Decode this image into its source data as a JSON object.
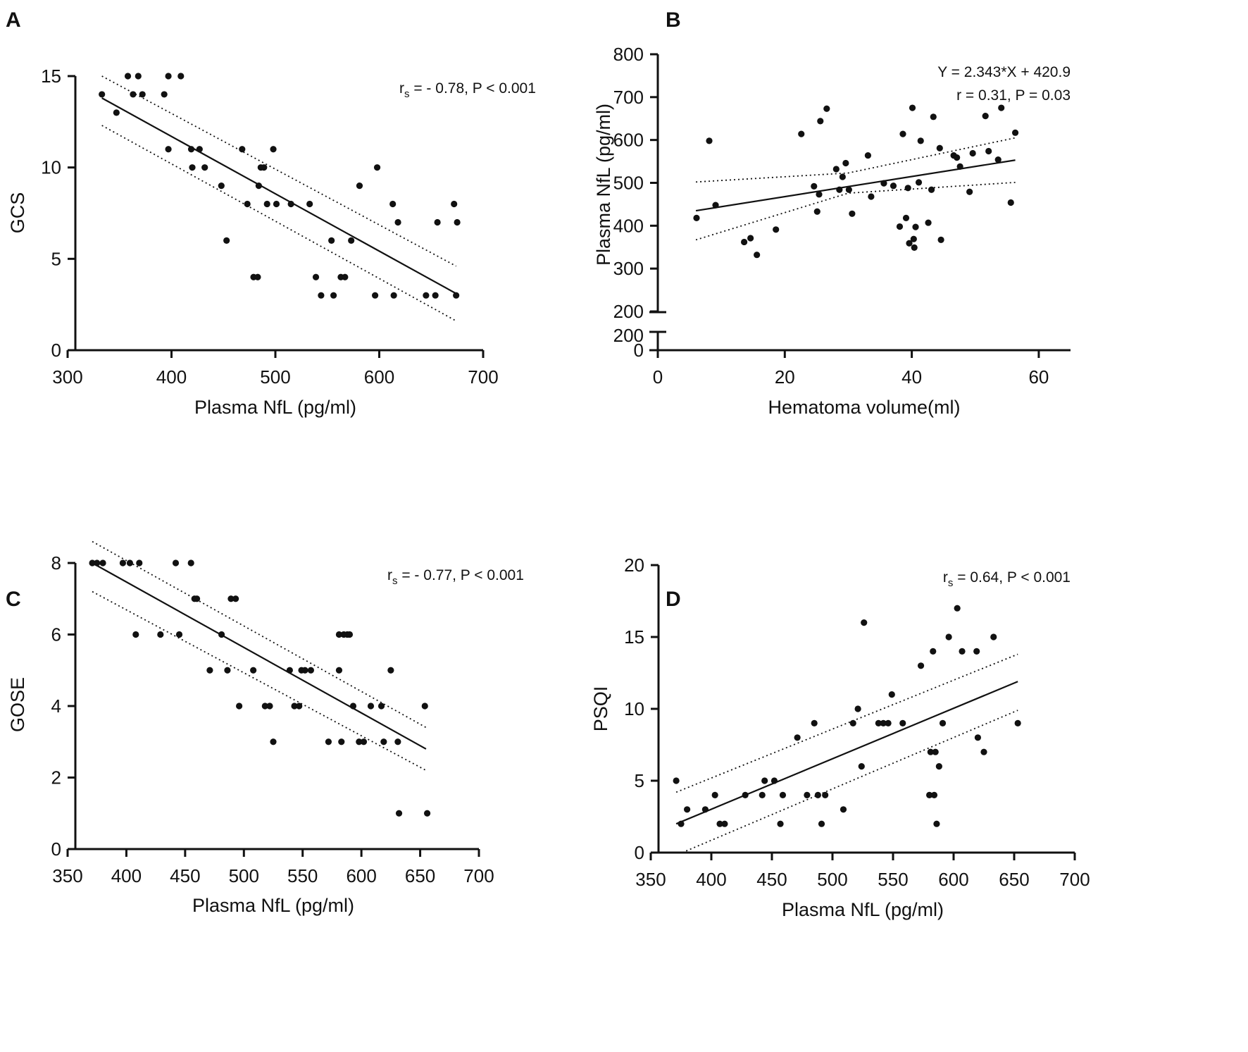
{
  "colors": {
    "ink": "#111111",
    "background": "#ffffff"
  },
  "chart_data": [
    {
      "panel": "A",
      "type": "scatter",
      "xlabel": "Plasma NfL (pg/ml)",
      "ylabel": "GCS",
      "xlim": [
        300,
        700
      ],
      "ylim": [
        0,
        15
      ],
      "xticks": [
        300,
        400,
        500,
        600,
        700
      ],
      "yticks": [
        0,
        5,
        10,
        15
      ],
      "annotation": {
        "prefix": "r",
        "sub": "s",
        "text": " = - 0.78, P < 0.001"
      },
      "fit": {
        "x": [
          333,
          674
        ],
        "y": [
          13.8,
          3.1
        ]
      },
      "ci_upper": {
        "x": [
          333,
          674
        ],
        "y": [
          15.0,
          4.6
        ]
      },
      "ci_lower": {
        "x": [
          333,
          674
        ],
        "y": [
          12.3,
          1.6
        ]
      },
      "points": [
        [
          333,
          14
        ],
        [
          347,
          13
        ],
        [
          358,
          15
        ],
        [
          363,
          14
        ],
        [
          368,
          15
        ],
        [
          372,
          14
        ],
        [
          393,
          14
        ],
        [
          397,
          11
        ],
        [
          397,
          15
        ],
        [
          409,
          15
        ],
        [
          419,
          11
        ],
        [
          420,
          10
        ],
        [
          427,
          11
        ],
        [
          432,
          10
        ],
        [
          448,
          9
        ],
        [
          453,
          6
        ],
        [
          468,
          11
        ],
        [
          473,
          8
        ],
        [
          479,
          4
        ],
        [
          483,
          4
        ],
        [
          484,
          9
        ],
        [
          486,
          10
        ],
        [
          489,
          10
        ],
        [
          492,
          8
        ],
        [
          498,
          11
        ],
        [
          501,
          8
        ],
        [
          515,
          8
        ],
        [
          533,
          8
        ],
        [
          539,
          4
        ],
        [
          544,
          3
        ],
        [
          554,
          6
        ],
        [
          556,
          3
        ],
        [
          563,
          4
        ],
        [
          567,
          4
        ],
        [
          573,
          6
        ],
        [
          581,
          9
        ],
        [
          596,
          3
        ],
        [
          598,
          10
        ],
        [
          613,
          8
        ],
        [
          614,
          3
        ],
        [
          618,
          7
        ],
        [
          645,
          3
        ],
        [
          654,
          3
        ],
        [
          656,
          7
        ],
        [
          672,
          8
        ],
        [
          674,
          3
        ],
        [
          675,
          7
        ]
      ]
    },
    {
      "panel": "B",
      "type": "scatter",
      "xlabel": "Hematoma volume(ml)",
      "ylabel": "Plasma NfL (pg/ml)",
      "xlim": [
        0,
        65
      ],
      "ylim": [
        200,
        800
      ],
      "xticks": [
        0,
        20,
        40,
        60
      ],
      "yticks": [
        200,
        300,
        400,
        500,
        600,
        700,
        800
      ],
      "lower_yticks": [
        0,
        200
      ],
      "annotation_lines": [
        "Y = 2.343*X + 420.9",
        "r = 0.31, P = 0.03"
      ],
      "fit": {
        "x": [
          6,
          56.3
        ],
        "y": [
          435,
          553
        ]
      },
      "ci_upper": {
        "x": [
          6,
          30,
          56.3
        ],
        "y": [
          502,
          523,
          605
        ]
      },
      "ci_lower": {
        "x": [
          6,
          30,
          56.3
        ],
        "y": [
          367,
          476,
          501
        ]
      },
      "points": [
        [
          6.1,
          418
        ],
        [
          8.1,
          598
        ],
        [
          9.1,
          448
        ],
        [
          13.6,
          362
        ],
        [
          14.6,
          371
        ],
        [
          15.6,
          332
        ],
        [
          18.6,
          391
        ],
        [
          22.6,
          614
        ],
        [
          24.6,
          492
        ],
        [
          25.1,
          433
        ],
        [
          25.4,
          473
        ],
        [
          25.6,
          644
        ],
        [
          26.6,
          673
        ],
        [
          28.1,
          532
        ],
        [
          28.6,
          484
        ],
        [
          29.1,
          514
        ],
        [
          29.6,
          546
        ],
        [
          30.1,
          484
        ],
        [
          30.6,
          428
        ],
        [
          33.1,
          564
        ],
        [
          33.6,
          468
        ],
        [
          35.6,
          499
        ],
        [
          37.1,
          493
        ],
        [
          38.1,
          398
        ],
        [
          38.6,
          614
        ],
        [
          39.1,
          418
        ],
        [
          39.4,
          488
        ],
        [
          39.6,
          359
        ],
        [
          40.1,
          675
        ],
        [
          40.3,
          369
        ],
        [
          40.4,
          349
        ],
        [
          40.6,
          397
        ],
        [
          41.1,
          501
        ],
        [
          41.4,
          598
        ],
        [
          42.6,
          407
        ],
        [
          43.1,
          484
        ],
        [
          43.4,
          654
        ],
        [
          44.4,
          581
        ],
        [
          44.6,
          367
        ],
        [
          46.6,
          564
        ],
        [
          47.1,
          559
        ],
        [
          47.6,
          538
        ],
        [
          49.1,
          479
        ],
        [
          49.6,
          569
        ],
        [
          51.6,
          656
        ],
        [
          52.1,
          574
        ],
        [
          53.6,
          554
        ],
        [
          54.1,
          675
        ],
        [
          55.6,
          454
        ],
        [
          56.3,
          617
        ]
      ]
    },
    {
      "panel": "C",
      "type": "scatter",
      "xlabel": "Plasma NfL (pg/ml)",
      "ylabel": "GOSE",
      "xlim": [
        350,
        700
      ],
      "ylim": [
        0,
        8
      ],
      "xticks": [
        350,
        400,
        450,
        500,
        550,
        600,
        650,
        700
      ],
      "yticks": [
        0,
        2,
        4,
        6,
        8
      ],
      "annotation": {
        "prefix": "r",
        "sub": "s",
        "text": " = - 0.77, P < 0.001"
      },
      "fit": {
        "x": [
          371,
          655
        ],
        "y": [
          8.0,
          2.8
        ]
      },
      "ci_upper": {
        "x": [
          371,
          655
        ],
        "y": [
          8.6,
          3.4
        ]
      },
      "ci_lower": {
        "x": [
          371,
          655
        ],
        "y": [
          7.2,
          2.2
        ]
      },
      "points": [
        [
          371,
          8
        ],
        [
          375,
          8
        ],
        [
          380,
          8
        ],
        [
          397,
          8
        ],
        [
          403,
          8
        ],
        [
          408,
          6
        ],
        [
          411,
          8
        ],
        [
          429,
          6
        ],
        [
          442,
          8
        ],
        [
          445,
          6
        ],
        [
          455,
          8
        ],
        [
          458,
          7
        ],
        [
          460,
          7
        ],
        [
          471,
          5
        ],
        [
          481,
          6
        ],
        [
          486,
          5
        ],
        [
          489,
          7
        ],
        [
          493,
          7
        ],
        [
          496,
          4
        ],
        [
          508,
          5
        ],
        [
          518,
          4
        ],
        [
          522,
          4
        ],
        [
          525,
          3
        ],
        [
          539,
          5
        ],
        [
          543,
          4
        ],
        [
          547,
          4
        ],
        [
          549,
          5
        ],
        [
          552,
          5
        ],
        [
          557,
          5
        ],
        [
          572,
          3
        ],
        [
          581,
          6
        ],
        [
          581,
          5
        ],
        [
          583,
          3
        ],
        [
          585,
          6
        ],
        [
          588,
          6
        ],
        [
          590,
          6
        ],
        [
          593,
          4
        ],
        [
          598,
          3
        ],
        [
          602,
          3
        ],
        [
          608,
          4
        ],
        [
          617,
          4
        ],
        [
          619,
          3
        ],
        [
          625,
          5
        ],
        [
          631,
          3
        ],
        [
          632,
          1
        ],
        [
          654,
          4
        ],
        [
          656,
          1
        ]
      ]
    },
    {
      "panel": "D",
      "type": "scatter",
      "xlabel": "Plasma NfL (pg/ml)",
      "ylabel": "PSQI",
      "xlim": [
        350,
        700
      ],
      "ylim": [
        0,
        20
      ],
      "xticks": [
        350,
        400,
        450,
        500,
        550,
        600,
        650,
        700
      ],
      "yticks": [
        0,
        5,
        10,
        15,
        20
      ],
      "annotation": {
        "prefix": "r",
        "sub": "s",
        "text": " = 0.64, P < 0.001"
      },
      "fit": {
        "x": [
          371,
          653
        ],
        "y": [
          2.0,
          11.9
        ]
      },
      "ci_upper": {
        "x": [
          371,
          653
        ],
        "y": [
          4.2,
          13.8
        ]
      },
      "ci_lower": {
        "x": [
          376,
          653
        ],
        "y": [
          0.0,
          9.9
        ]
      },
      "points": [
        [
          371,
          5
        ],
        [
          375,
          2
        ],
        [
          380,
          3
        ],
        [
          395,
          3
        ],
        [
          403,
          4
        ],
        [
          407,
          2
        ],
        [
          411,
          2
        ],
        [
          428,
          4
        ],
        [
          442,
          4
        ],
        [
          444,
          5
        ],
        [
          452,
          5
        ],
        [
          457,
          2
        ],
        [
          459,
          4
        ],
        [
          471,
          8
        ],
        [
          479,
          4
        ],
        [
          485,
          9
        ],
        [
          488,
          4
        ],
        [
          491,
          2
        ],
        [
          494,
          4
        ],
        [
          509,
          3
        ],
        [
          517,
          9
        ],
        [
          521,
          10
        ],
        [
          524,
          6
        ],
        [
          526,
          16
        ],
        [
          538,
          9
        ],
        [
          542,
          9
        ],
        [
          546,
          9
        ],
        [
          549,
          11
        ],
        [
          558,
          9
        ],
        [
          573,
          13
        ],
        [
          580,
          4
        ],
        [
          581,
          7
        ],
        [
          583,
          14
        ],
        [
          584,
          4
        ],
        [
          585,
          7
        ],
        [
          586,
          2
        ],
        [
          588,
          6
        ],
        [
          591,
          9
        ],
        [
          596,
          15
        ],
        [
          603,
          17
        ],
        [
          607,
          14
        ],
        [
          619,
          14
        ],
        [
          620,
          8
        ],
        [
          625,
          7
        ],
        [
          633,
          15
        ],
        [
          653,
          9
        ]
      ]
    }
  ],
  "panels": [
    {
      "letter": "A"
    },
    {
      "letter": "B"
    },
    {
      "letter": "C"
    },
    {
      "letter": "D"
    }
  ]
}
